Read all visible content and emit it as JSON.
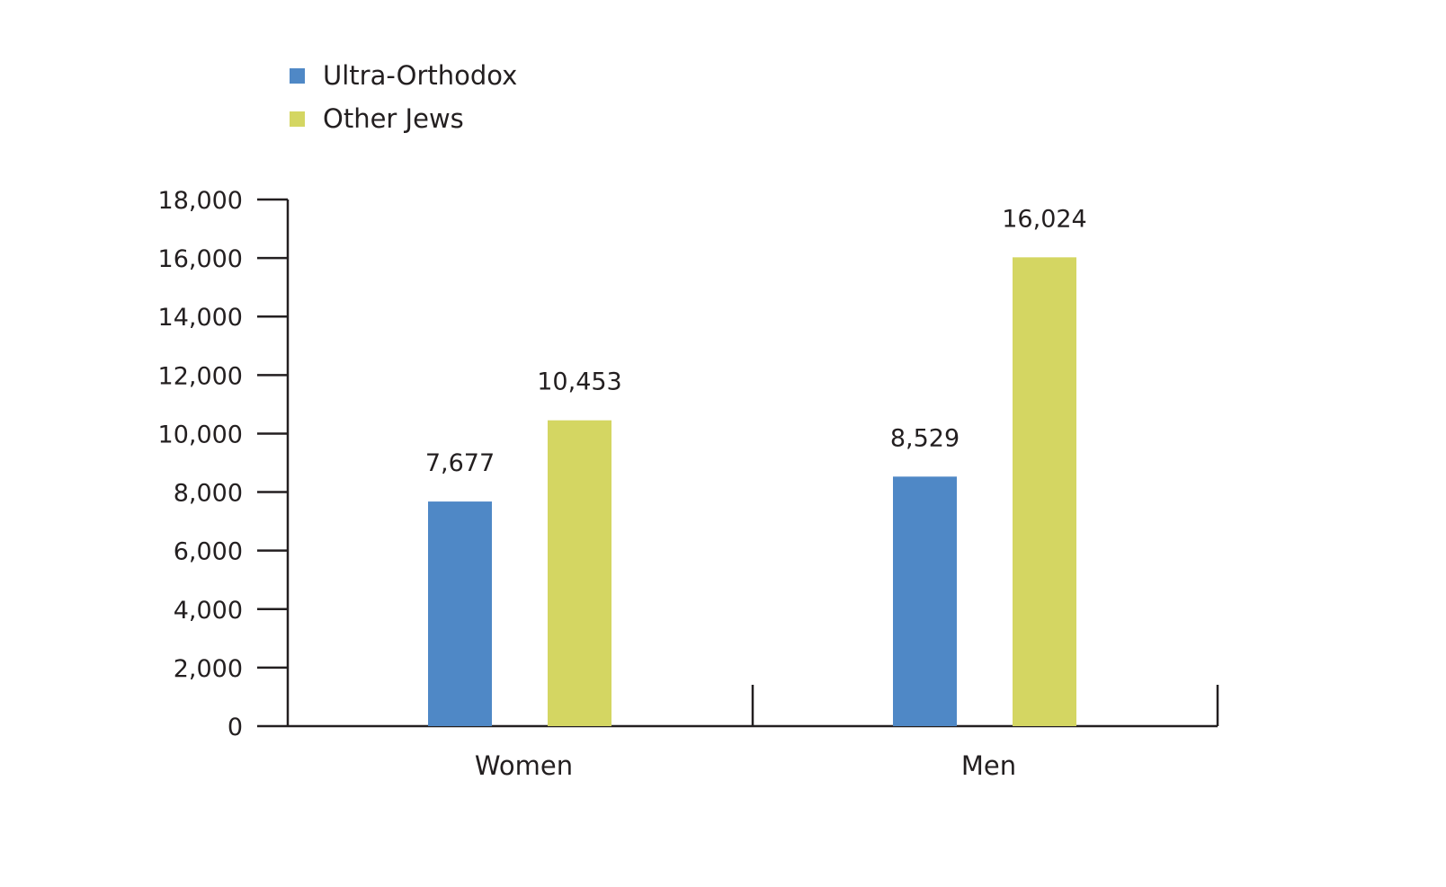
{
  "chart_data": {
    "type": "bar",
    "title": "",
    "xlabel": "",
    "ylabel": "",
    "categories": [
      "Women",
      "Men"
    ],
    "series": [
      {
        "name": "Ultra-Orthodox",
        "color": "#4f88c6",
        "values": [
          7677,
          8529
        ],
        "labels": [
          "7,677",
          "8,529"
        ]
      },
      {
        "name": "Other Jews",
        "color": "#d4d662",
        "values": [
          10453,
          16024
        ],
        "labels": [
          "10,453",
          "16,024"
        ]
      }
    ],
    "ylim": [
      0,
      18000
    ],
    "yticks": [
      0,
      2000,
      4000,
      6000,
      8000,
      10000,
      12000,
      14000,
      16000,
      18000
    ],
    "ytick_labels": [
      "0",
      "2,000",
      "4,000",
      "6,000",
      "8,000",
      "10,000",
      "12,000",
      "14,000",
      "16,000",
      "18,000"
    ],
    "grid": false,
    "legend_position": "top-left"
  }
}
